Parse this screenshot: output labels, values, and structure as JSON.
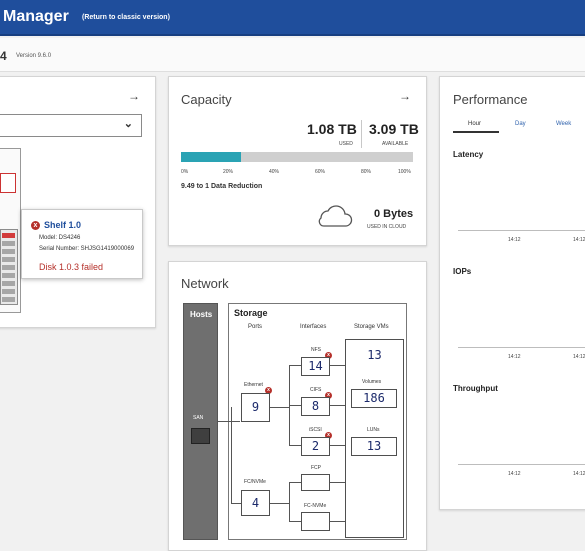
{
  "header": {
    "title": "Manager",
    "classic_link": "(Return to classic version)"
  },
  "cluster": {
    "name": "4",
    "version": "Version 9.6.0"
  },
  "hardware": {
    "selected": "",
    "popup": {
      "shelf": "Shelf 1.0",
      "model": "Model: DS4246",
      "serial": "Serial Number: SHJSG1419000069",
      "status": "Disk 1.0.3 failed"
    }
  },
  "capacity": {
    "title": "Capacity",
    "used_value": "1.08 TB",
    "used_label": "USED",
    "available_value": "3.09 TB",
    "available_label": "AVAILABLE",
    "used_fraction": 0.26,
    "ticks": [
      "0%",
      "20%",
      "40%",
      "60%",
      "80%",
      "100%"
    ],
    "reduction": "9.49 to 1 Data Reduction",
    "cloud_value": "0 Bytes",
    "cloud_label": "USED IN CLOUD",
    "colors": {
      "fill": "#2aa3b4",
      "track": "#cfcfcf"
    }
  },
  "network": {
    "title": "Network",
    "hosts_label": "Hosts",
    "san_label": "SAN",
    "storage_title": "Storage",
    "columns": {
      "ports": "Ports",
      "interfaces": "Interfaces",
      "svms": "Storage VMs"
    },
    "ports": [
      {
        "label": "Ethernet",
        "value": "9",
        "error": true
      },
      {
        "label": "FC/NVMe",
        "value": "4",
        "error": false
      }
    ],
    "interfaces": [
      {
        "label": "NFS",
        "value": "14",
        "error": true
      },
      {
        "label": "CIFS",
        "value": "8",
        "error": true
      },
      {
        "label": "iSCSI",
        "value": "2",
        "error": true
      },
      {
        "label": "FCP",
        "value": "",
        "error": false
      },
      {
        "label": "FC-NVMe",
        "value": "",
        "error": false
      }
    ],
    "svms": {
      "svm_count": "13",
      "volumes_label": "Volumes",
      "volumes": "186",
      "luns_label": "LUNs",
      "luns": "13"
    }
  },
  "performance": {
    "title": "Performance",
    "tabs": [
      "Hour",
      "Day",
      "Week"
    ],
    "active_tab": "Hour",
    "metrics": [
      "Latency",
      "IOPs",
      "Throughput"
    ],
    "time_label": "14:12"
  },
  "icons": {
    "arrow": "→",
    "chevron": "⌄",
    "error": "x"
  }
}
